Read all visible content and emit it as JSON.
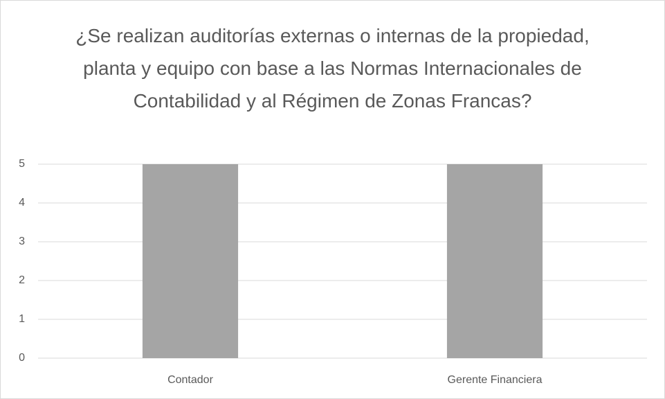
{
  "chart_data": {
    "type": "bar",
    "title": "¿Se realizan auditorías externas o internas de la propiedad, planta y equipo con base a las Normas Internacionales de Contabilidad y al Régimen de Zonas Francas?",
    "categories": [
      "Contador",
      "Gerente Financiera"
    ],
    "values": [
      5,
      5
    ],
    "color": "#a5a5a5",
    "ylim": [
      0,
      5
    ],
    "yticks": [
      0,
      1,
      2,
      3,
      4,
      5
    ],
    "grid": true
  }
}
